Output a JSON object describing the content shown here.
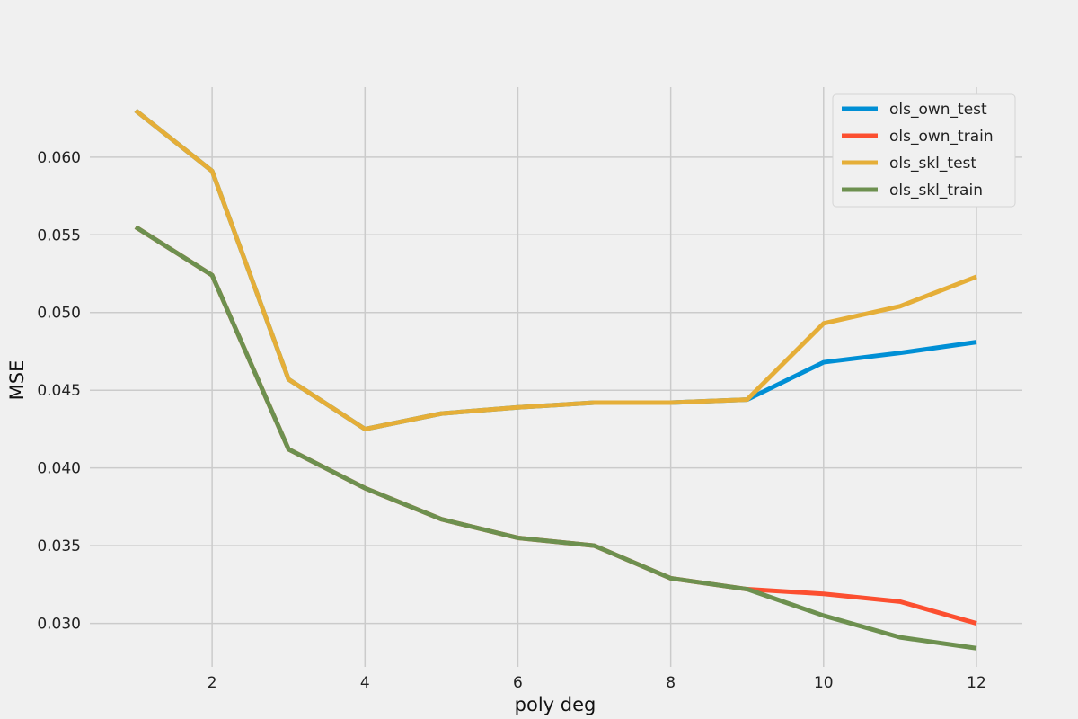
{
  "chart_data": {
    "type": "line",
    "title": "",
    "xlabel": "poly deg",
    "ylabel": "MSE",
    "xlim": [
      0.4,
      12.6
    ],
    "ylim": [
      0.0272,
      0.0645
    ],
    "xticks": [
      2,
      4,
      6,
      8,
      10,
      12
    ],
    "yticks": [
      0.03,
      0.035,
      0.04,
      0.045,
      0.05,
      0.055,
      0.06
    ],
    "ytick_labels": [
      "0.030",
      "0.035",
      "0.040",
      "0.045",
      "0.050",
      "0.055",
      "0.060"
    ],
    "grid": true,
    "legend_position": "top-right",
    "x": [
      1,
      2,
      3,
      4,
      5,
      6,
      7,
      8,
      9,
      10,
      11,
      12
    ],
    "series": [
      {
        "name": "ols_own_test",
        "color": "#008fd5",
        "values": [
          0.063,
          0.0591,
          0.0457,
          0.0425,
          0.0435,
          0.0439,
          0.0442,
          0.0442,
          0.0444,
          0.0468,
          0.0474,
          0.0481
        ]
      },
      {
        "name": "ols_own_train",
        "color": "#fc4f30",
        "values": [
          0.0555,
          0.0524,
          0.0412,
          0.0387,
          0.0367,
          0.0355,
          0.035,
          0.0329,
          0.0322,
          0.0319,
          0.0314,
          0.03
        ]
      },
      {
        "name": "ols_skl_test",
        "color": "#e5ae38",
        "values": [
          0.063,
          0.0591,
          0.0457,
          0.0425,
          0.0435,
          0.0439,
          0.0442,
          0.0442,
          0.0444,
          0.0493,
          0.0504,
          0.0523
        ]
      },
      {
        "name": "ols_skl_train",
        "color": "#6d904f",
        "values": [
          0.0555,
          0.0524,
          0.0412,
          0.0387,
          0.0367,
          0.0355,
          0.035,
          0.0329,
          0.0322,
          0.0305,
          0.0291,
          0.0284
        ]
      }
    ]
  }
}
